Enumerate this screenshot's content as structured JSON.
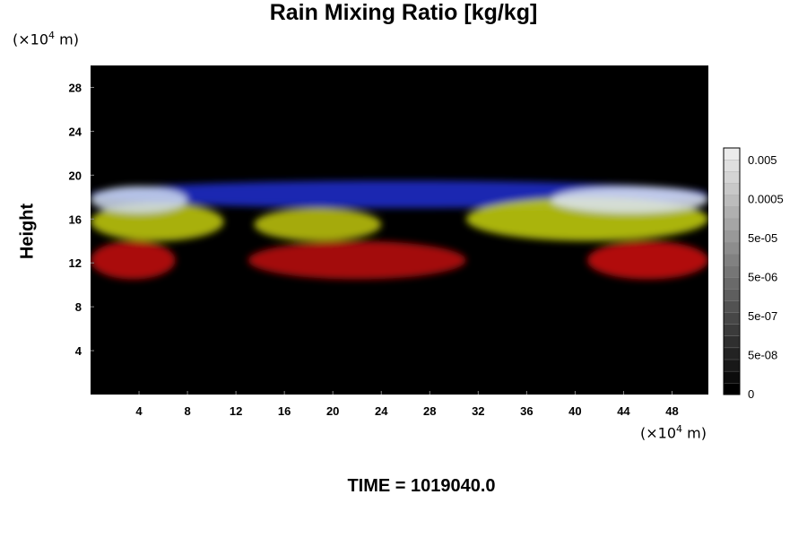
{
  "chart_data": {
    "type": "heatmap",
    "title": "Rain Mixing Ratio [kg/kg]",
    "ylabel": "Height",
    "xlabel": "",
    "y_unit": "(×10",
    "y_unit_exp": "4",
    "y_unit_tail": " m)",
    "x_unit": "(×10",
    "x_unit_exp": "4",
    "x_unit_tail": " m)",
    "xlim": [
      0,
      51
    ],
    "ylim": [
      0,
      30
    ],
    "x_ticks": [
      4,
      8,
      12,
      16,
      20,
      24,
      28,
      32,
      36,
      40,
      44,
      48
    ],
    "y_ticks": [
      4,
      8,
      12,
      16,
      20,
      24,
      28
    ],
    "colorbar_labels": [
      "0.005",
      "0.0005",
      "5e-05",
      "5e-06",
      "5e-07",
      "5e-08",
      "0"
    ],
    "background_color": "#000000",
    "layer_colors": {
      "top": "#2a3ad8",
      "upper": "#c8d8ff",
      "middle": "#c8d400",
      "bottom": "#d41010"
    },
    "features": [
      {
        "name": "rain-upper-blue",
        "color": "#1f2fd0",
        "x_range": [
          0,
          51
        ],
        "y_range": [
          17,
          19.5
        ]
      },
      {
        "name": "rain-mid-yellow-left",
        "color": "#c6cf10",
        "x_range": [
          0,
          11
        ],
        "y_range": [
          14,
          17.5
        ]
      },
      {
        "name": "rain-mid-yellow-center",
        "color": "#c2c80c",
        "x_range": [
          13.5,
          24
        ],
        "y_range": [
          14,
          17
        ]
      },
      {
        "name": "rain-mid-yellow-right",
        "color": "#c8d410",
        "x_range": [
          31,
          51
        ],
        "y_range": [
          14,
          18
        ]
      },
      {
        "name": "rain-low-red-left",
        "color": "#c81010",
        "x_range": [
          0,
          7
        ],
        "y_range": [
          10.5,
          14
        ]
      },
      {
        "name": "rain-low-red-center",
        "color": "#c00e0e",
        "x_range": [
          13,
          31
        ],
        "y_range": [
          10.5,
          14
        ]
      },
      {
        "name": "rain-low-red-right",
        "color": "#d01212",
        "x_range": [
          41,
          51
        ],
        "y_range": [
          10.5,
          14
        ]
      },
      {
        "name": "rain-white-cap-left",
        "color": "#d0dcf0",
        "x_range": [
          0,
          8
        ],
        "y_range": [
          16.5,
          19
        ]
      },
      {
        "name": "rain-white-cap-right",
        "color": "#dce4f4",
        "x_range": [
          38,
          51
        ],
        "y_range": [
          16.5,
          19
        ]
      }
    ],
    "annotation": "TIME = 1019040.0"
  }
}
